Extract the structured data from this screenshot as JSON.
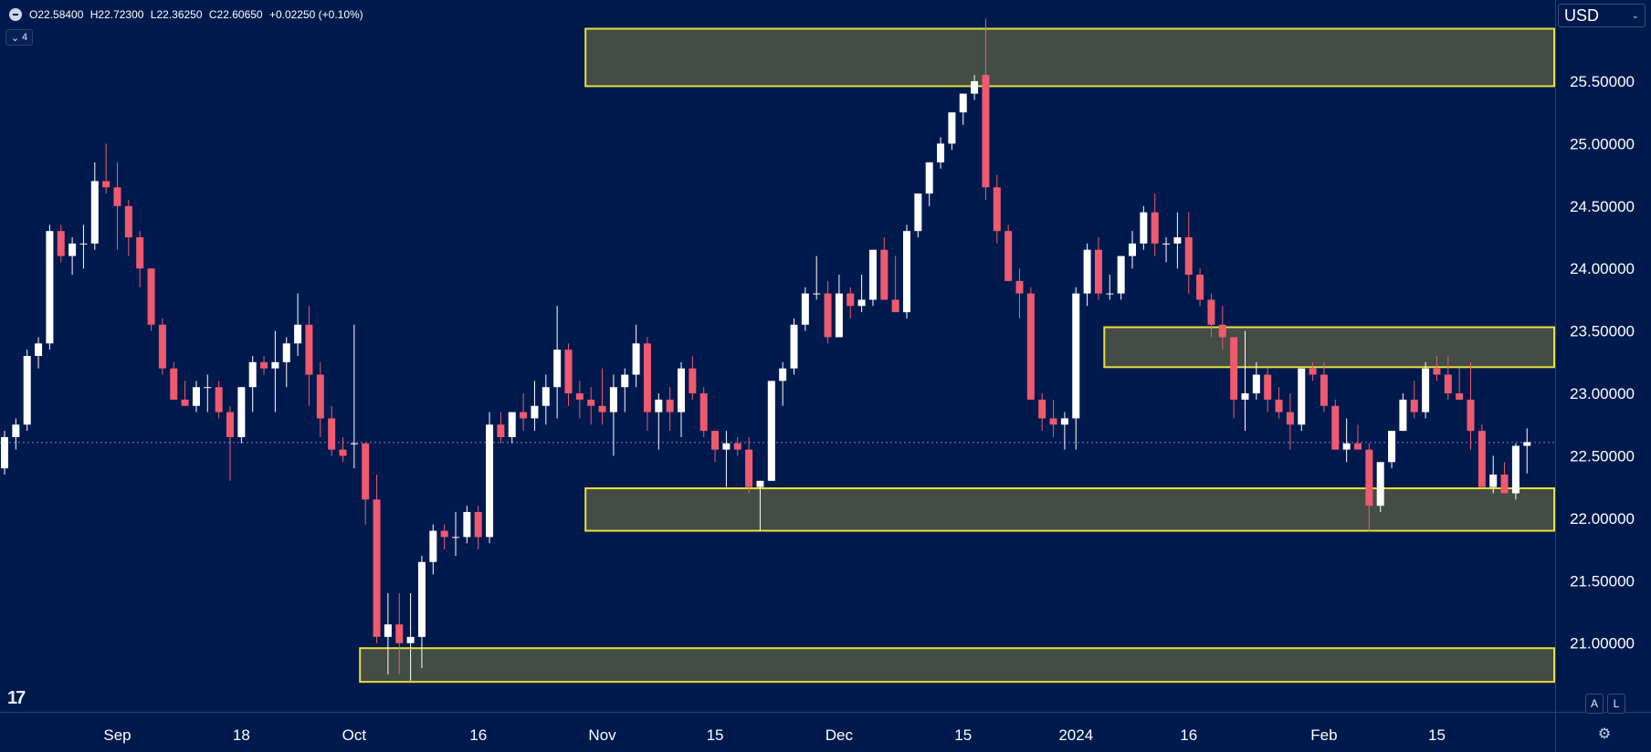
{
  "legend": {
    "open": "O22.58400",
    "high": "H22.72300",
    "low": "L22.36250",
    "close": "C22.60650",
    "change": "+0.02250 (+0.10%)"
  },
  "indicator_toggle": {
    "label": "4"
  },
  "currency": {
    "label": "USD"
  },
  "scale_buttons": {
    "auto": "A",
    "log": "L"
  },
  "colors": {
    "background": "#001a4d",
    "up_candle": "#ffffff",
    "down_candle": "#ef5a6f",
    "zone_fill": "#434c45",
    "zone_border": "#e8e03a",
    "price_line": "#9a6fd6"
  },
  "chart_data": {
    "type": "candlestick",
    "y_axis": {
      "min": 20.45,
      "max": 26.15,
      "ticks": [
        "25.50000",
        "25.00000",
        "24.50000",
        "24.00000",
        "23.50000",
        "23.00000",
        "22.50000",
        "22.00000",
        "21.50000",
        "21.00000"
      ],
      "tick_values": [
        25.5,
        25.0,
        24.5,
        24.0,
        23.5,
        23.0,
        22.5,
        22.0,
        21.5,
        21.0
      ]
    },
    "x_axis": {
      "labels": [
        "Sep",
        "18",
        "Oct",
        "16",
        "Nov",
        "15",
        "Dec",
        "15",
        "2024",
        "16",
        "Feb",
        "15"
      ],
      "label_index": [
        10,
        21,
        31,
        42,
        53,
        63,
        74,
        85,
        95,
        105,
        117,
        127
      ]
    },
    "current_price": 22.6065,
    "zones": [
      {
        "from_index": 52,
        "top": 25.92,
        "bottom": 25.46
      },
      {
        "from_index": 98,
        "top": 23.53,
        "bottom": 23.21
      },
      {
        "from_index": 52,
        "top": 22.24,
        "bottom": 21.9
      },
      {
        "from_index": 32,
        "top": 20.96,
        "bottom": 20.69
      }
    ],
    "candles": [
      [
        22.4,
        22.7,
        22.35,
        22.65
      ],
      [
        22.65,
        22.8,
        22.55,
        22.75
      ],
      [
        22.75,
        23.35,
        22.7,
        23.3
      ],
      [
        23.3,
        23.45,
        23.2,
        23.4
      ],
      [
        23.4,
        24.35,
        23.35,
        24.3
      ],
      [
        24.3,
        24.35,
        24.05,
        24.1
      ],
      [
        24.1,
        24.25,
        23.95,
        24.2
      ],
      [
        24.2,
        24.35,
        24.0,
        24.2
      ],
      [
        24.2,
        24.85,
        24.15,
        24.7
      ],
      [
        24.7,
        25.0,
        24.6,
        24.65
      ],
      [
        24.65,
        24.85,
        24.15,
        24.5
      ],
      [
        24.5,
        24.55,
        24.1,
        24.25
      ],
      [
        24.25,
        24.3,
        23.85,
        24.0
      ],
      [
        24.0,
        24.0,
        23.5,
        23.55
      ],
      [
        23.55,
        23.6,
        23.15,
        23.2
      ],
      [
        23.2,
        23.25,
        22.95,
        22.95
      ],
      [
        22.95,
        23.1,
        22.9,
        22.9
      ],
      [
        22.9,
        23.1,
        22.85,
        23.05
      ],
      [
        23.05,
        23.15,
        22.85,
        23.05
      ],
      [
        23.05,
        23.1,
        22.8,
        22.85
      ],
      [
        22.85,
        22.9,
        22.3,
        22.65
      ],
      [
        22.65,
        23.05,
        22.6,
        23.05
      ],
      [
        23.05,
        23.3,
        22.85,
        23.25
      ],
      [
        23.25,
        23.3,
        23.15,
        23.2
      ],
      [
        23.2,
        23.5,
        22.85,
        23.25
      ],
      [
        23.25,
        23.45,
        23.05,
        23.4
      ],
      [
        23.4,
        23.8,
        23.3,
        23.55
      ],
      [
        23.55,
        23.7,
        22.9,
        23.15
      ],
      [
        23.15,
        23.25,
        22.65,
        22.8
      ],
      [
        22.8,
        22.9,
        22.5,
        22.55
      ],
      [
        22.55,
        22.65,
        22.45,
        22.5
      ],
      [
        22.6,
        23.55,
        22.4,
        22.6
      ],
      [
        22.6,
        22.6,
        21.95,
        22.15
      ],
      [
        22.15,
        22.35,
        21.0,
        21.05
      ],
      [
        21.05,
        21.4,
        20.75,
        21.15
      ],
      [
        21.15,
        21.4,
        20.75,
        21.0
      ],
      [
        21.0,
        21.4,
        20.7,
        21.05
      ],
      [
        21.05,
        21.7,
        20.8,
        21.65
      ],
      [
        21.65,
        21.95,
        21.55,
        21.9
      ],
      [
        21.9,
        21.95,
        21.75,
        21.85
      ],
      [
        21.85,
        22.05,
        21.7,
        21.85
      ],
      [
        21.85,
        22.1,
        21.8,
        22.05
      ],
      [
        22.05,
        22.1,
        21.75,
        21.85
      ],
      [
        21.85,
        22.85,
        21.8,
        22.75
      ],
      [
        22.75,
        22.85,
        22.6,
        22.65
      ],
      [
        22.65,
        22.85,
        22.6,
        22.85
      ],
      [
        22.85,
        23.0,
        22.7,
        22.8
      ],
      [
        22.8,
        23.1,
        22.7,
        22.9
      ],
      [
        22.9,
        23.15,
        22.75,
        23.05
      ],
      [
        23.05,
        23.7,
        22.8,
        23.35
      ],
      [
        23.35,
        23.4,
        22.9,
        23.0
      ],
      [
        23.0,
        23.1,
        22.8,
        22.95
      ],
      [
        22.95,
        23.05,
        22.75,
        22.9
      ],
      [
        22.9,
        23.2,
        22.75,
        22.85
      ],
      [
        22.85,
        23.15,
        22.5,
        23.05
      ],
      [
        23.05,
        23.2,
        22.85,
        23.15
      ],
      [
        23.15,
        23.55,
        23.05,
        23.4
      ],
      [
        23.4,
        23.45,
        22.7,
        22.85
      ],
      [
        22.85,
        23.0,
        22.55,
        22.95
      ],
      [
        22.95,
        23.05,
        22.7,
        22.85
      ],
      [
        22.85,
        23.25,
        22.65,
        23.2
      ],
      [
        23.2,
        23.3,
        22.95,
        23.0
      ],
      [
        23.0,
        23.05,
        22.65,
        22.7
      ],
      [
        22.7,
        22.7,
        22.45,
        22.55
      ],
      [
        22.55,
        22.7,
        22.25,
        22.6
      ],
      [
        22.6,
        22.65,
        22.5,
        22.55
      ],
      [
        22.55,
        22.65,
        22.2,
        22.25
      ],
      [
        22.25,
        22.3,
        21.9,
        22.3
      ],
      [
        22.3,
        23.1,
        22.3,
        23.1
      ],
      [
        23.1,
        23.25,
        22.9,
        23.2
      ],
      [
        23.2,
        23.6,
        23.15,
        23.55
      ],
      [
        23.55,
        23.85,
        23.5,
        23.8
      ],
      [
        23.8,
        24.1,
        23.75,
        23.8
      ],
      [
        23.8,
        23.9,
        23.4,
        23.45
      ],
      [
        23.45,
        23.95,
        23.45,
        23.8
      ],
      [
        23.8,
        23.85,
        23.6,
        23.7
      ],
      [
        23.7,
        23.95,
        23.65,
        23.75
      ],
      [
        23.75,
        24.15,
        23.7,
        24.15
      ],
      [
        24.15,
        24.25,
        23.75,
        23.75
      ],
      [
        23.75,
        24.1,
        23.7,
        23.65
      ],
      [
        23.65,
        24.35,
        23.6,
        24.3
      ],
      [
        24.3,
        24.6,
        24.25,
        24.6
      ],
      [
        24.6,
        24.85,
        24.5,
        24.85
      ],
      [
        24.85,
        25.05,
        24.8,
        25.0
      ],
      [
        25.0,
        25.2,
        24.95,
        25.25
      ],
      [
        25.25,
        25.4,
        25.15,
        25.4
      ],
      [
        25.4,
        25.55,
        25.35,
        25.5
      ],
      [
        25.55,
        26.0,
        24.55,
        24.65
      ],
      [
        24.65,
        24.75,
        24.2,
        24.3
      ],
      [
        24.3,
        24.35,
        23.95,
        23.9
      ],
      [
        23.9,
        24.0,
        23.6,
        23.8
      ],
      [
        23.8,
        23.85,
        22.95,
        22.95
      ],
      [
        22.95,
        23.0,
        22.7,
        22.8
      ],
      [
        22.8,
        22.95,
        22.65,
        22.75
      ],
      [
        22.75,
        22.85,
        22.55,
        22.8
      ],
      [
        22.8,
        23.85,
        22.55,
        23.8
      ],
      [
        23.8,
        24.2,
        23.7,
        24.15
      ],
      [
        24.15,
        24.25,
        23.75,
        23.8
      ],
      [
        23.8,
        23.95,
        23.75,
        23.8
      ],
      [
        23.8,
        24.1,
        23.75,
        24.1
      ],
      [
        24.1,
        24.3,
        24.0,
        24.2
      ],
      [
        24.2,
        24.5,
        24.15,
        24.45
      ],
      [
        24.45,
        24.6,
        24.1,
        24.2
      ],
      [
        24.2,
        24.25,
        24.05,
        24.2
      ],
      [
        24.2,
        24.45,
        24.0,
        24.25
      ],
      [
        24.25,
        24.45,
        23.8,
        23.95
      ],
      [
        23.95,
        24.0,
        23.7,
        23.75
      ],
      [
        23.75,
        23.8,
        23.45,
        23.55
      ],
      [
        23.55,
        23.7,
        23.35,
        23.45
      ],
      [
        23.45,
        23.45,
        22.8,
        22.95
      ],
      [
        22.95,
        23.5,
        22.7,
        23.0
      ],
      [
        23.0,
        23.25,
        22.95,
        23.15
      ],
      [
        23.15,
        23.2,
        22.85,
        22.95
      ],
      [
        22.95,
        23.05,
        22.8,
        22.85
      ],
      [
        22.85,
        23.0,
        22.55,
        22.75
      ],
      [
        22.75,
        23.2,
        22.7,
        23.2
      ],
      [
        23.2,
        23.25,
        23.1,
        23.15
      ],
      [
        23.15,
        23.25,
        22.85,
        22.9
      ],
      [
        22.9,
        22.95,
        22.55,
        22.55
      ],
      [
        22.55,
        22.8,
        22.45,
        22.6
      ],
      [
        22.6,
        22.75,
        22.55,
        22.55
      ],
      [
        22.55,
        22.6,
        21.9,
        22.1
      ],
      [
        22.1,
        22.45,
        22.05,
        22.45
      ],
      [
        22.45,
        22.7,
        22.4,
        22.7
      ],
      [
        22.7,
        23.0,
        22.7,
        22.95
      ],
      [
        22.95,
        23.1,
        22.8,
        22.85
      ],
      [
        22.85,
        23.25,
        22.8,
        23.2
      ],
      [
        23.2,
        23.3,
        23.1,
        23.15
      ],
      [
        23.15,
        23.3,
        22.95,
        23.0
      ],
      [
        23.0,
        23.2,
        22.95,
        22.95
      ],
      [
        22.95,
        23.25,
        22.55,
        22.7
      ],
      [
        22.7,
        22.75,
        22.25,
        22.25
      ],
      [
        22.25,
        22.5,
        22.2,
        22.35
      ],
      [
        22.35,
        22.45,
        22.2,
        22.2
      ],
      [
        22.2,
        22.6,
        22.15,
        22.58
      ],
      [
        22.58,
        22.72,
        22.36,
        22.61
      ]
    ]
  }
}
